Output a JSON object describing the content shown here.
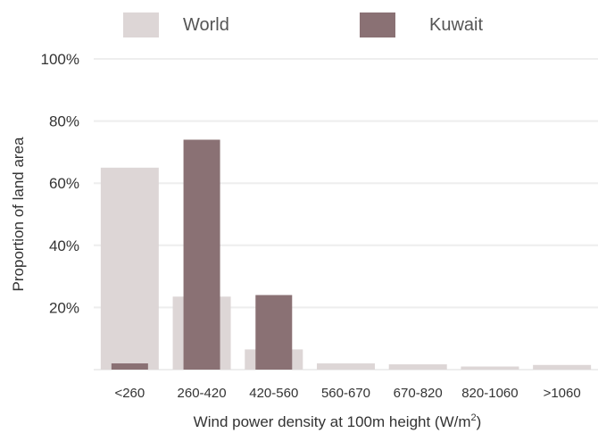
{
  "chart_data": {
    "type": "bar",
    "xlabel": "Wind power density at 100m height (W/m",
    "xlabel_superscript": "2",
    "xlabel_suffix": ")",
    "ylabel": "Proportion of land area",
    "ylim": [
      0,
      100
    ],
    "y_ticks": [
      "20%",
      "40%",
      "60%",
      "80%",
      "100%"
    ],
    "categories": [
      "<260",
      "260-420",
      "420-560",
      "560-670",
      "670-820",
      "820-1060",
      ">1060"
    ],
    "series": [
      {
        "name": "World",
        "color": "#ddd6d6",
        "values": [
          65,
          23.5,
          6.5,
          2,
          1.7,
          1,
          1.5
        ]
      },
      {
        "name": "Kuwait",
        "color": "#8a7174",
        "values": [
          2,
          74,
          24,
          0,
          0,
          0,
          0
        ]
      }
    ],
    "grid": true,
    "legend_position": "top"
  }
}
